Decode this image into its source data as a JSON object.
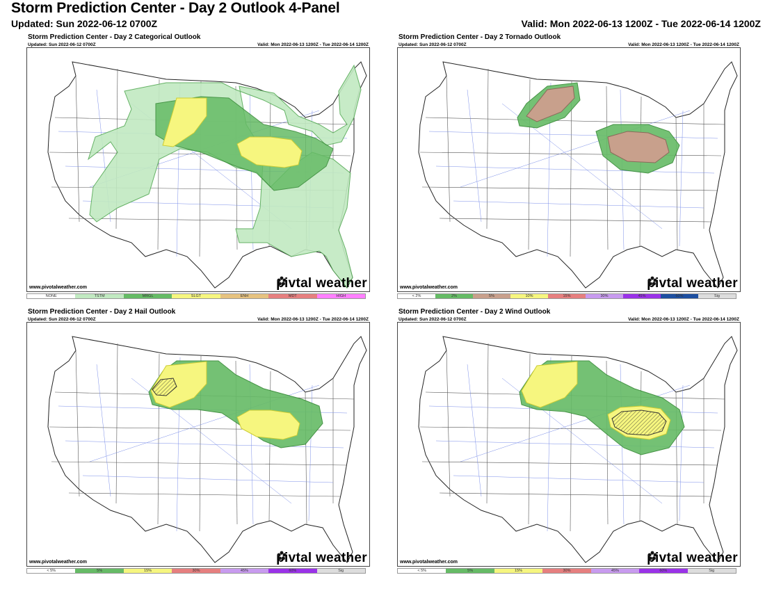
{
  "header": {
    "title": "Storm Prediction Center - Day 2 Outlook 4-Panel",
    "updated": "Updated: Sun 2022-06-12 0700Z",
    "valid": "Valid: Mon 2022-06-13 1200Z - Tue 2022-06-14 1200Z"
  },
  "panels": [
    {
      "title": "Storm Prediction Center - Day 2 Categorical Outlook",
      "updated": "Updated: Sun 2022-06-12 0700Z",
      "valid": "Valid: Mon 2022-06-13 1200Z - Tue 2022-06-14 1200Z",
      "credit": "www.pivotalweather.com",
      "logo_left": "piv",
      "logo_right": "tal weather",
      "legend": [
        {
          "label": "NONE",
          "color": "#ffffff"
        },
        {
          "label": "TSTM",
          "color": "#c1e9c1"
        },
        {
          "label": "MRGL",
          "color": "#66bb66"
        },
        {
          "label": "SLGT",
          "color": "#f6f67f"
        },
        {
          "label": "ENH",
          "color": "#e6c27f"
        },
        {
          "label": "MDT",
          "color": "#e67f7f"
        },
        {
          "label": "HIGH",
          "color": "#ff7fff"
        }
      ]
    },
    {
      "title": "Storm Prediction Center - Day 2 Tornado Outlook",
      "updated": "Updated: Sun 2022-06-12 0700Z",
      "valid": "Valid: Mon 2022-06-13 1200Z - Tue 2022-06-14 1200Z",
      "credit": "www.pivotalweather.com",
      "logo_left": "piv",
      "logo_right": "tal weather",
      "legend": [
        {
          "label": "< 2%",
          "color": "#ffffff"
        },
        {
          "label": "2%",
          "color": "#66bb66"
        },
        {
          "label": "5%",
          "color": "#c8a08c"
        },
        {
          "label": "10%",
          "color": "#f6f67f"
        },
        {
          "label": "15%",
          "color": "#e67f7f"
        },
        {
          "label": "30%",
          "color": "#c89bef"
        },
        {
          "label": "45%",
          "color": "#9a32e8"
        },
        {
          "label": "60%",
          "color": "#1d4fa0"
        },
        {
          "label": "Sig",
          "color": "#dddddd"
        }
      ]
    },
    {
      "title": "Storm Prediction Center - Day 2 Hail Outlook",
      "updated": "Updated: Sun 2022-06-12 0700Z",
      "valid": "Valid: Mon 2022-06-13 1200Z - Tue 2022-06-14 1200Z",
      "credit": "www.pivotalweather.com",
      "logo_left": "piv",
      "logo_right": "tal weather",
      "legend": [
        {
          "label": "< 5%",
          "color": "#ffffff"
        },
        {
          "label": "5%",
          "color": "#66bb66"
        },
        {
          "label": "15%",
          "color": "#f6f67f"
        },
        {
          "label": "30%",
          "color": "#e67f7f"
        },
        {
          "label": "45%",
          "color": "#c89bef"
        },
        {
          "label": "60%",
          "color": "#9a32e8"
        },
        {
          "label": "Sig",
          "color": "#dddddd"
        }
      ]
    },
    {
      "title": "Storm Prediction Center - Day 2 Wind Outlook",
      "updated": "Updated: Sun 2022-06-12 0700Z",
      "valid": "Valid: Mon 2022-06-13 1200Z - Tue 2022-06-14 1200Z",
      "credit": "www.pivotalweather.com",
      "logo_left": "piv",
      "logo_right": "tal weather",
      "legend": [
        {
          "label": "< 5%",
          "color": "#ffffff"
        },
        {
          "label": "5%",
          "color": "#66bb66"
        },
        {
          "label": "15%",
          "color": "#f6f67f"
        },
        {
          "label": "30%",
          "color": "#e67f7f"
        },
        {
          "label": "45%",
          "color": "#c89bef"
        },
        {
          "label": "60%",
          "color": "#9a32e8"
        },
        {
          "label": "Sig",
          "color": "#dddddd"
        }
      ]
    }
  ]
}
